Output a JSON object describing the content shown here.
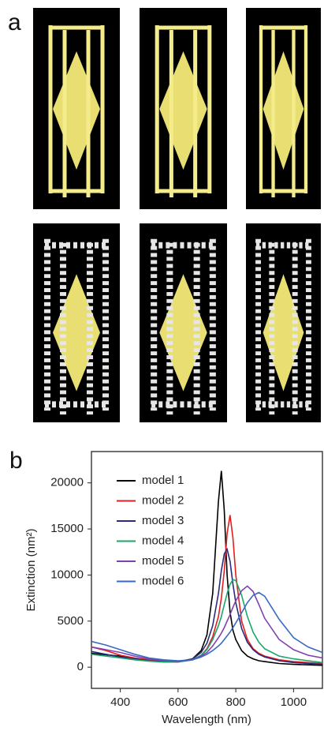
{
  "figure": {
    "panel_a_label": "a"
  },
  "chart_data": {
    "type": "line",
    "panel_label": "b",
    "x_label": "Wavelength (nm)",
    "y_label": "Extinction (nm²)",
    "x": [
      300,
      350,
      400,
      450,
      500,
      550,
      600,
      650,
      680,
      700,
      720,
      740,
      750,
      760,
      770,
      780,
      790,
      800,
      820,
      840,
      860,
      880,
      900,
      950,
      1000,
      1050,
      1100
    ],
    "series": [
      {
        "name": "model 1",
        "color": "#000000",
        "values": [
          1500,
          1350,
          1200,
          950,
          700,
          600,
          600,
          900,
          1800,
          3500,
          8000,
          18000,
          21300,
          17000,
          10000,
          6000,
          4000,
          3000,
          1800,
          1200,
          900,
          700,
          600,
          400,
          300,
          250,
          200
        ]
      },
      {
        "name": "model 2",
        "color": "#e02020",
        "values": [
          2200,
          1800,
          1300,
          1000,
          800,
          650,
          600,
          800,
          1300,
          2000,
          3300,
          5500,
          7500,
          10500,
          14500,
          16500,
          14000,
          10000,
          5000,
          3000,
          2000,
          1500,
          1200,
          800,
          600,
          500,
          400
        ]
      },
      {
        "name": "model 3",
        "color": "#2b2b7a",
        "values": [
          1700,
          1400,
          1100,
          900,
          700,
          600,
          600,
          900,
          1600,
          2600,
          4500,
          8000,
          10500,
          12300,
          12800,
          11500,
          9000,
          7000,
          4200,
          2700,
          1900,
          1400,
          1100,
          700,
          500,
          400,
          300
        ]
      },
      {
        "name": "model 4",
        "color": "#1aa66a",
        "values": [
          1400,
          1200,
          1000,
          800,
          650,
          550,
          550,
          800,
          1300,
          1900,
          3000,
          4500,
          5500,
          6800,
          8000,
          9000,
          9500,
          9400,
          7800,
          5500,
          3800,
          2700,
          2000,
          1200,
          900,
          700,
          500
        ]
      },
      {
        "name": "model 5",
        "color": "#8040b0",
        "values": [
          2200,
          1900,
          1600,
          1200,
          900,
          700,
          600,
          800,
          1200,
          1600,
          2300,
          3200,
          3700,
          4300,
          5000,
          5700,
          6500,
          7200,
          8300,
          8800,
          8200,
          6800,
          5300,
          3000,
          1900,
          1300,
          1000
        ]
      },
      {
        "name": "model 6",
        "color": "#3a6ac0",
        "values": [
          2800,
          2400,
          1900,
          1400,
          1000,
          800,
          700,
          800,
          1100,
          1400,
          1800,
          2300,
          2600,
          3000,
          3400,
          3800,
          4300,
          4800,
          5900,
          7000,
          7800,
          8100,
          7700,
          5200,
          3200,
          2200,
          1600
        ]
      }
    ],
    "xlim": [
      300,
      1100
    ],
    "xticks": [
      400,
      600,
      800,
      1000
    ],
    "ylim": [
      -2300,
      23400
    ],
    "yticks": [
      0,
      5000,
      10000,
      15000,
      20000
    ],
    "legend": "upper-left"
  }
}
